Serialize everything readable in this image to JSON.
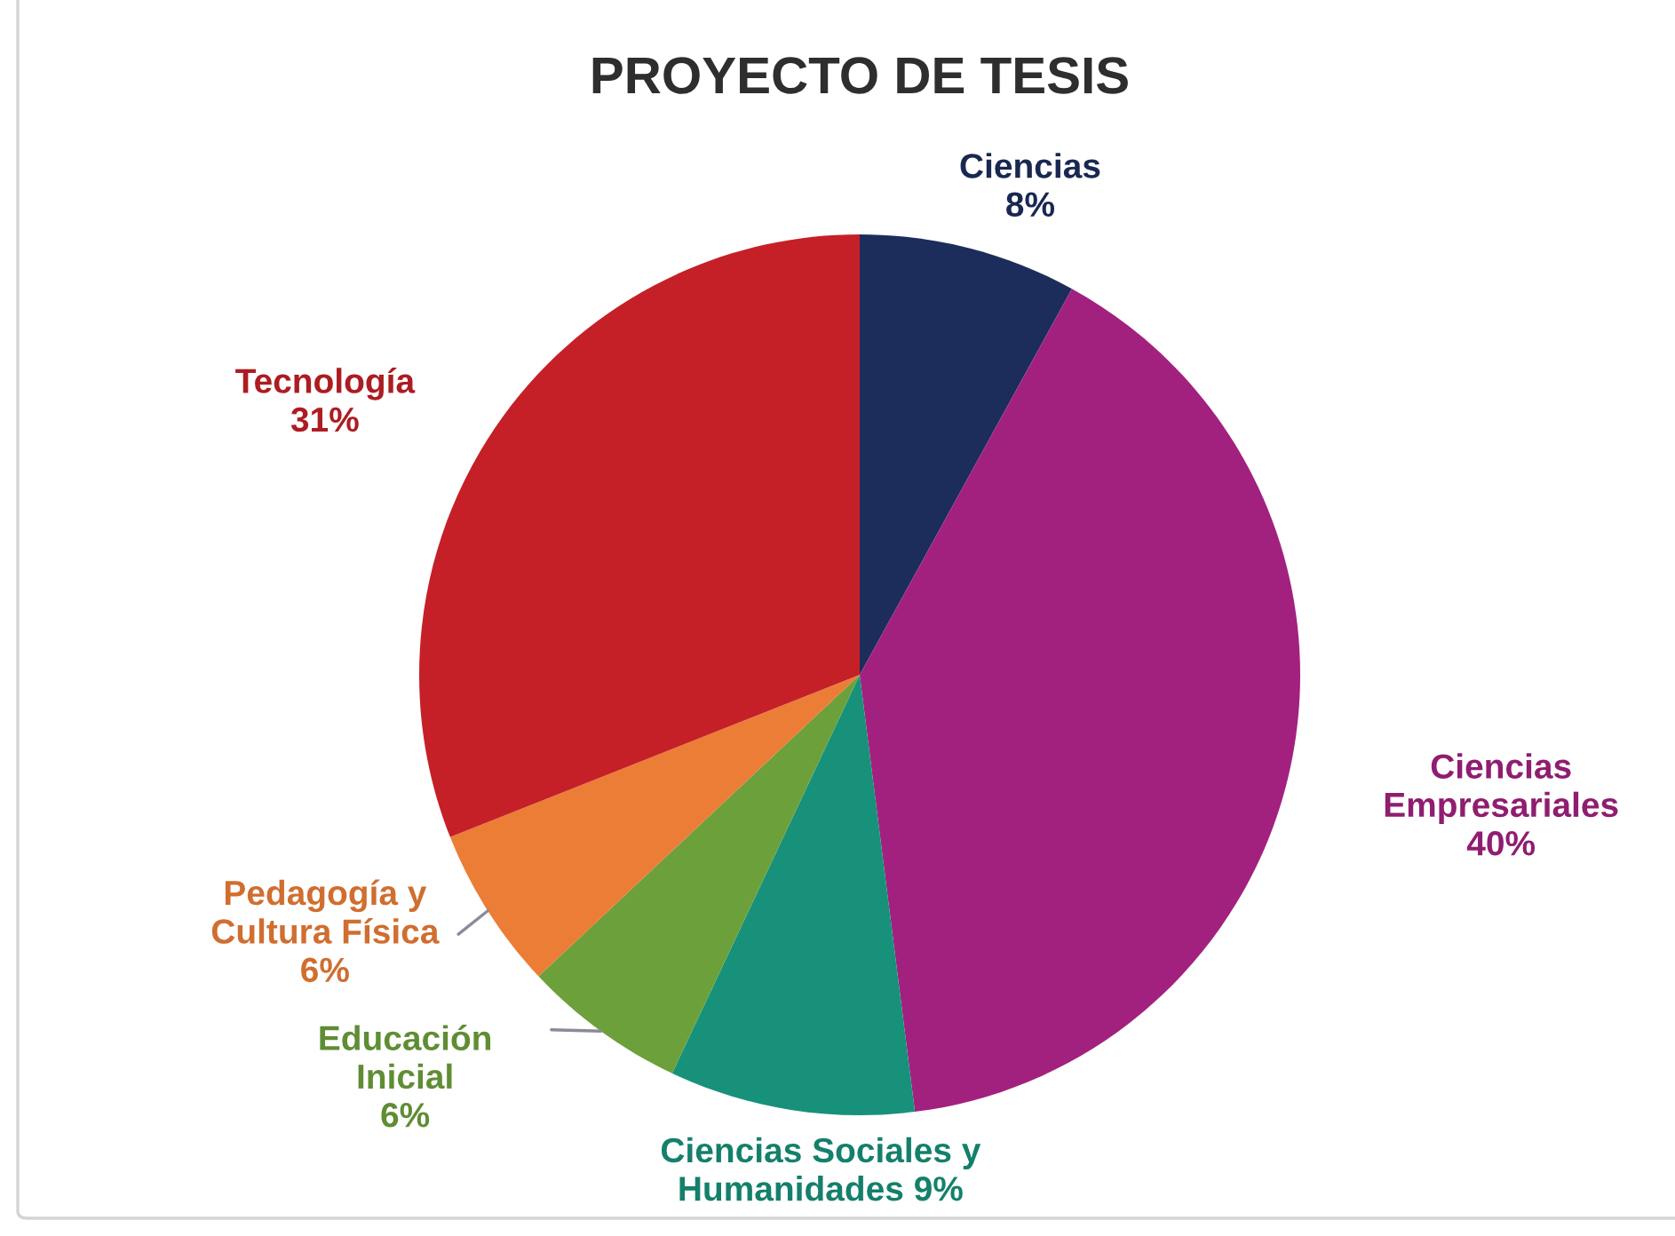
{
  "chart_data": {
    "type": "pie",
    "title": "PROYECTO DE TESIS",
    "categories": [
      "Ciencias",
      "Ciencias Empresariales",
      "Ciencias Sociales y Humanidades",
      "Educación Inicial",
      "Pedagogía y Cultura Física",
      "Tecnología"
    ],
    "values": [
      8,
      40,
      9,
      6,
      6,
      31
    ],
    "value_labels": [
      "8%",
      "40%",
      "9%",
      "6%",
      "6%",
      "31%"
    ],
    "colors": [
      "#1c2d5c",
      "#a2217f",
      "#17917a",
      "#6ca03b",
      "#ec7d36",
      "#c52027"
    ]
  }
}
